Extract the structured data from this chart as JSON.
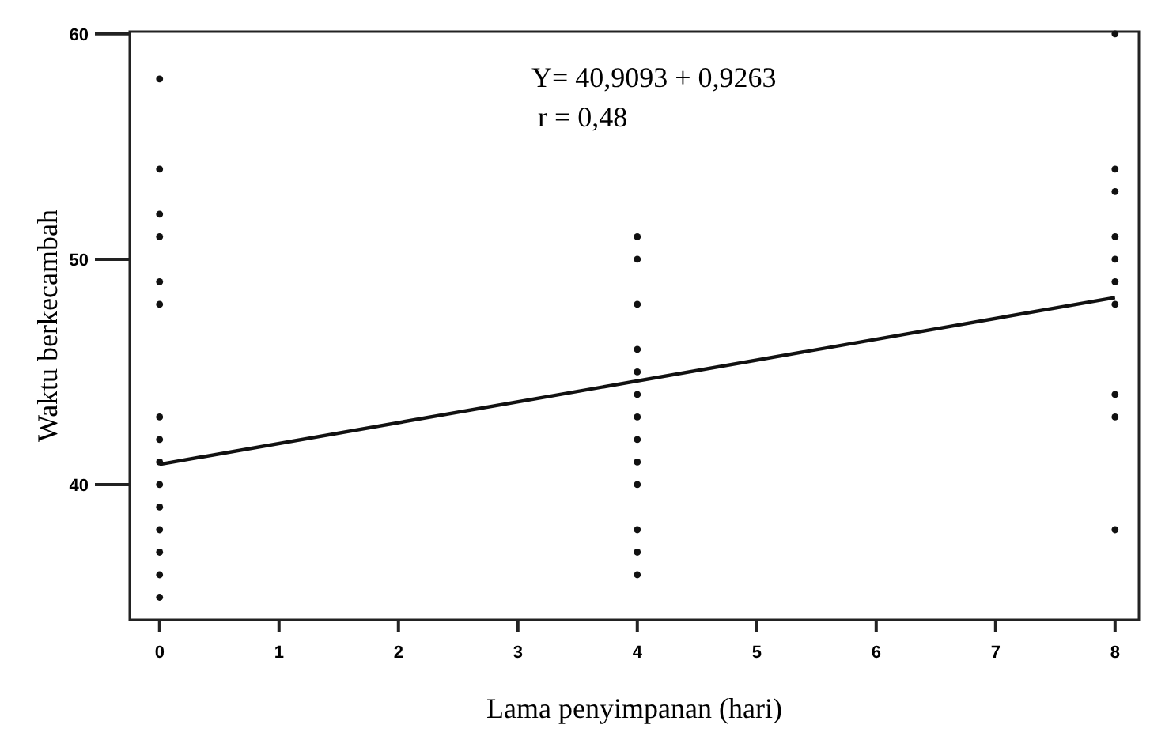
{
  "chart_data": {
    "type": "scatter",
    "xlabel": "Lama penyimpanan (hari)",
    "ylabel": "Waktu berkecambah",
    "xlim": [
      -0.25,
      8.2
    ],
    "ylim": [
      34,
      60.1
    ],
    "xticks": [
      0,
      1,
      2,
      3,
      4,
      5,
      6,
      7,
      8
    ],
    "yticks": [
      40,
      50,
      60
    ],
    "grid": false,
    "marker": "circle",
    "series": [
      {
        "color": "#111111",
        "x": [
          0,
          0,
          0,
          0,
          0,
          0,
          0,
          0,
          0,
          0,
          0,
          0,
          0,
          0,
          0,
          4,
          4,
          4,
          4,
          4,
          4,
          4,
          4,
          4,
          4,
          4,
          4,
          4,
          8,
          8,
          8,
          8,
          8,
          8,
          8,
          8,
          8,
          8
        ],
        "values": [
          58,
          54,
          52,
          51,
          49,
          48,
          43,
          42,
          41,
          40,
          39,
          38,
          37,
          36,
          35,
          51,
          50,
          48,
          46,
          45,
          44,
          43,
          42,
          41,
          40,
          38,
          37,
          36,
          60,
          54,
          53,
          51,
          50,
          49,
          48,
          44,
          43,
          38
        ]
      },
      {
        "type": "line",
        "color": "#111111",
        "marker": "none",
        "x": [
          0,
          8
        ],
        "values": [
          40.9,
          48.3
        ]
      }
    ],
    "annotations": [
      "Y= 40,9093 + 0,9263",
      "r = 0,48"
    ]
  }
}
